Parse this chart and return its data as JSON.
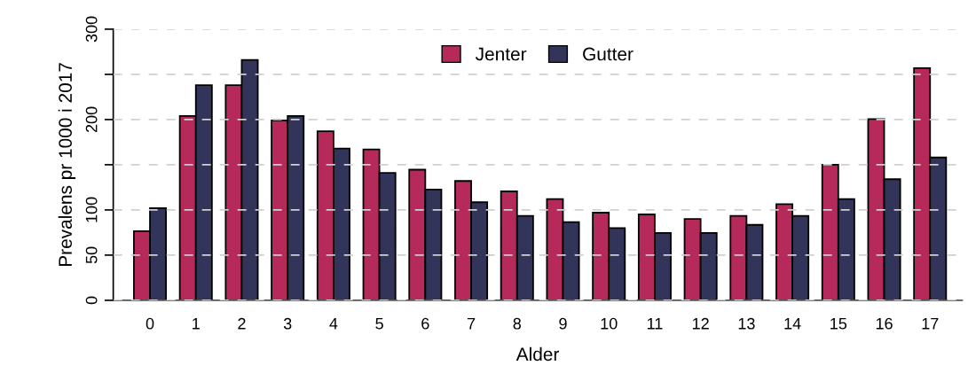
{
  "chart_data": {
    "type": "bar",
    "xlabel": "Alder",
    "ylabel": "Prevalens pr 1000 i 2017",
    "categories": [
      "0",
      "1",
      "2",
      "3",
      "4",
      "5",
      "6",
      "7",
      "8",
      "9",
      "10",
      "11",
      "12",
      "13",
      "14",
      "15",
      "16",
      "17"
    ],
    "series": [
      {
        "name": "Jenter",
        "color": "#b52a5a",
        "values": [
          76.5,
          204,
          238,
          199,
          187,
          167,
          144.5,
          132,
          120.5,
          112,
          97,
          95,
          90,
          93.5,
          106.5,
          150,
          200.5,
          257
        ]
      },
      {
        "name": "Gutter",
        "color": "#323459",
        "values": [
          102,
          238,
          266,
          204,
          168,
          141,
          122.5,
          108.5,
          93.5,
          86.5,
          80,
          74.5,
          74.5,
          83.5,
          93.5,
          112,
          134,
          158
        ]
      }
    ],
    "ylim": [
      0,
      300
    ],
    "yticks": [
      0,
      50,
      100,
      {
        "value": 150,
        "label": null
      },
      200,
      {
        "value": 250,
        "label": null
      },
      300
    ],
    "grid": "y",
    "legend": "top"
  }
}
